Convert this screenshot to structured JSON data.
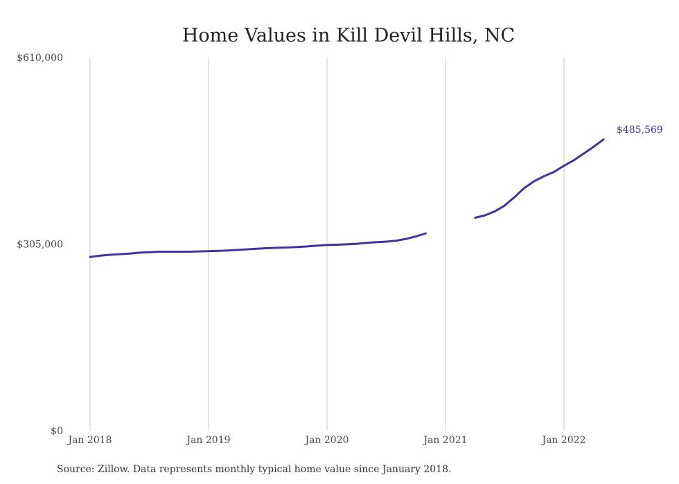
{
  "chart_data": {
    "type": "line",
    "title": "Home Values in Kill Devil Hills, NC",
    "xlabel": "",
    "ylabel": "",
    "x_ticks": [
      "Jan 2018",
      "Jan 2019",
      "Jan 2020",
      "Jan 2021",
      "Jan 2022"
    ],
    "y_ticks": [
      "$0",
      "$305,000",
      "$610,000"
    ],
    "ylim": [
      0,
      610000
    ],
    "xlim": [
      "2018-01",
      "2022-05"
    ],
    "grid": "vertical",
    "color": "#3d35a0",
    "end_label": "$485,569",
    "series": [
      {
        "segments": [
          {
            "x": [
              "2018-01",
              "2018-02",
              "2018-03",
              "2018-04",
              "2018-05",
              "2018-06",
              "2018-07",
              "2018-08",
              "2018-09",
              "2018-10",
              "2018-11",
              "2018-12",
              "2019-01",
              "2019-02",
              "2019-03",
              "2019-04",
              "2019-05",
              "2019-06",
              "2019-07",
              "2019-08",
              "2019-09",
              "2019-10",
              "2019-11",
              "2019-12",
              "2020-01",
              "2020-02",
              "2020-03",
              "2020-04",
              "2020-05",
              "2020-06",
              "2020-07",
              "2020-08",
              "2020-09",
              "2020-10",
              "2020-11"
            ],
            "values": [
              284000,
              286000,
              287500,
              288500,
              289500,
              291000,
              291800,
              292500,
              292500,
              292500,
              292500,
              293000,
              293500,
              294000,
              294500,
              295500,
              296500,
              297500,
              298300,
              299000,
              299500,
              300300,
              301200,
              302500,
              303500,
              304000,
              304500,
              305500,
              307000,
              308000,
              309000,
              310500,
              313500,
              317500,
              322500
            ]
          },
          {
            "x": [
              "2021-04",
              "2021-05",
              "2021-06",
              "2021-07",
              "2021-08",
              "2021-09",
              "2021-10",
              "2021-11",
              "2021-12",
              "2022-01",
              "2022-02",
              "2022-03",
              "2022-04",
              "2022-05"
            ],
            "values": [
              348000,
              352000,
              358500,
              368000,
              382000,
              397000,
              408000,
              416000,
              423000,
              433000,
              442000,
              453000,
              464000,
              476000
            ]
          }
        ]
      }
    ]
  },
  "source": "Source: Zillow. Data represents monthly typical home value since January 2018."
}
